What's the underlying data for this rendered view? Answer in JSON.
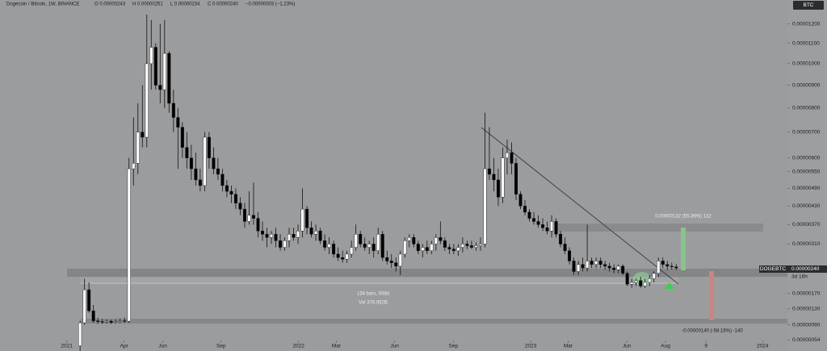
{
  "chart_data": {
    "type": "candlestick",
    "header": {
      "symbol": "Dogecoin / Bitcoin, 1W, BINANCE",
      "open": "O 0.00000243",
      "high": "H 0.00000251",
      "low": "L 0.00000234",
      "close": "C 0.00000240",
      "change": "−0.00000003 (−1.23%)"
    },
    "currency": "BTC",
    "ticker": "DOGEBTC",
    "last_price": "0.00000240",
    "countdown": "3d 16h",
    "annotations": {
      "gain": "0.00000132 (55.36%) 132",
      "range_bars": "134 bars, 938d",
      "range_vol": "Vol 376.062B",
      "loss": "-0.00000140 (-58.16%) -140"
    },
    "up_color": "#ffffff",
    "down_color": "#000000",
    "xlim": [
      -15,
      162
    ],
    "xticks": [
      {
        "value": 0,
        "label": "2021"
      },
      {
        "value": 12.9,
        "label": "Apr"
      },
      {
        "value": 21.6,
        "label": "Jun"
      },
      {
        "value": 34.7,
        "label": "Sep"
      },
      {
        "value": 52.1,
        "label": "2022"
      },
      {
        "value": 60.6,
        "label": "Mar"
      },
      {
        "value": 73.7,
        "label": "Jun"
      },
      {
        "value": 86.9,
        "label": "Sep"
      },
      {
        "value": 104.3,
        "label": "2023"
      },
      {
        "value": 112.7,
        "label": "Mar"
      },
      {
        "value": 125.9,
        "label": "Jun"
      },
      {
        "value": 134.6,
        "label": "Aug"
      },
      {
        "value": 143.7,
        "label": "9"
      },
      {
        "value": 156.4,
        "label": "2024"
      }
    ],
    "ylim": [
      2.8e-07,
      1.33e-05
    ],
    "yticks": [
      {
        "value": 1.2e-05,
        "label": "0.00001200"
      },
      {
        "value": 1.1e-05,
        "label": "0.00001100"
      },
      {
        "value": 1e-05,
        "label": "0.00001000"
      },
      {
        "value": 9e-06,
        "label": "0.00000900"
      },
      {
        "value": 8e-06,
        "label": "0.00000800"
      },
      {
        "value": 7e-06,
        "label": "0.00000700"
      },
      {
        "value": 6e-06,
        "label": "0.00000600"
      },
      {
        "value": 5.5e-06,
        "label": "0.00000550"
      },
      {
        "value": 4.9e-06,
        "label": "0.00000490"
      },
      {
        "value": 4.3e-06,
        "label": "0.00000430"
      },
      {
        "value": 3.7e-06,
        "label": "0.00000370"
      },
      {
        "value": 3.1e-06,
        "label": "0.00000310"
      },
      {
        "value": 1.7e-06,
        "label": "0.00000170"
      },
      {
        "value": 1.3e-06,
        "label": "0.00000130"
      },
      {
        "value": 9e-07,
        "label": "0.00000090"
      },
      {
        "value": 5.4e-07,
        "label": "0.00000054"
      }
    ],
    "x": [
      3,
      4,
      5,
      6,
      7,
      8,
      9,
      10,
      11,
      12,
      13,
      14,
      15,
      16,
      17,
      18,
      19,
      20,
      21,
      22,
      23,
      24,
      25,
      26,
      27,
      28,
      29,
      30,
      31,
      32,
      33,
      34,
      35,
      36,
      37,
      38,
      39,
      40,
      41,
      42,
      43,
      44,
      45,
      46,
      47,
      48,
      49,
      50,
      51,
      52,
      53,
      54,
      55,
      56,
      57,
      58,
      59,
      60,
      61,
      62,
      63,
      64,
      65,
      66,
      67,
      68,
      69,
      70,
      71,
      72,
      73,
      74,
      75,
      76,
      77,
      78,
      79,
      80,
      81,
      82,
      83,
      84,
      85,
      86,
      87,
      88,
      89,
      90,
      91,
      92,
      93,
      94,
      95,
      96,
      97,
      98,
      99,
      100,
      101,
      102,
      103,
      104,
      105,
      106,
      107,
      108,
      109,
      110,
      111,
      112,
      113,
      114,
      115,
      116,
      117,
      118,
      119,
      120,
      121,
      122,
      123,
      124,
      125,
      126,
      127,
      128,
      129,
      130,
      131,
      132,
      133,
      134,
      135,
      136,
      137
    ],
    "open": [
      4e-07,
      9.5e-07,
      1.8e-06,
      1.25e-06,
      1e-06,
      9.8e-07,
      9.7e-07,
      9.9e-07,
      9.6e-07,
      9.8e-07,
      1e-06,
      9.9e-07,
      5.6e-06,
      5.8e-06,
      7e-06,
      6.8e-06,
      1e-05,
      1.08e-05,
      9e-06,
      8.8e-06,
      1.05e-05,
      8.2e-06,
      7.6e-06,
      7.2e-06,
      6.4e-06,
      6e-06,
      5.6e-06,
      5.2e-06,
      5e-06,
      6.8e-06,
      6e-06,
      5.6e-06,
      5.4e-06,
      5e-06,
      4.8e-06,
      4.7e-06,
      4.4e-06,
      4.2e-06,
      3.8e-06,
      4e-06,
      3.9e-06,
      3.5e-06,
      3.4e-06,
      3.3e-06,
      3.4e-06,
      3.2e-06,
      3e-06,
      3.2e-06,
      3.4e-06,
      3.3e-06,
      3.5e-06,
      4.2e-06,
      3.6e-06,
      3.4e-06,
      3.5e-06,
      3.2e-06,
      3e-06,
      3.1e-06,
      2.8e-06,
      2.7e-06,
      2.65e-06,
      2.8e-06,
      3e-06,
      3.4e-06,
      3.1e-06,
      3e-06,
      3.1e-06,
      2.9e-06,
      3.4e-06,
      2.7e-06,
      2.6e-06,
      2.55e-06,
      2.45e-06,
      2.8e-06,
      3.2e-06,
      3.3e-06,
      3.1e-06,
      2.9e-06,
      3e-06,
      2.9e-06,
      3.1e-06,
      3.3e-06,
      3.2e-06,
      3e-06,
      2.95e-06,
      2.9e-06,
      3e-06,
      3.1e-06,
      3.05e-06,
      3e-06,
      3.05e-06,
      3.1e-06,
      5.6e-06,
      5.4e-06,
      5.2e-06,
      4.6e-06,
      6e-06,
      6.2e-06,
      5.8e-06,
      4.7e-06,
      4.3e-06,
      4.1e-06,
      3.9e-06,
      3.8e-06,
      3.7e-06,
      3.6e-06,
      3.5e-06,
      3.8e-06,
      3.4e-06,
      3.1e-06,
      2.9e-06,
      2.6e-06,
      2.3e-06,
      2.5e-06,
      2.4e-06,
      2.6e-06,
      2.5e-06,
      2.6e-06,
      2.5e-06,
      2.45e-06,
      2.4e-06,
      2.35e-06,
      2.45e-06,
      2.25e-06,
      1.95e-06,
      2e-06,
      2.05e-06,
      1.9e-06,
      2e-06,
      2.1e-06,
      2.25e-06,
      2.6e-06,
      2.5e-06,
      2.45e-06,
      2.43e-06
    ],
    "high": [
      1e-06,
      2.1e-06,
      2e-06,
      1.4e-06,
      1.08e-06,
      1.05e-06,
      1.04e-06,
      1.03e-06,
      1.04e-06,
      1.06e-06,
      1.08e-06,
      6e-06,
      7.6e-06,
      8.2e-06,
      9e-06,
      1.25e-05,
      1.22e-05,
      1.1e-05,
      1.2e-05,
      1.22e-05,
      1.06e-05,
      8.8e-06,
      8e-06,
      7.4e-06,
      7e-06,
      6.5e-06,
      6.2e-06,
      5.6e-06,
      7e-06,
      7e-06,
      6.4e-06,
      6e-06,
      5.6e-06,
      5.2e-06,
      5e-06,
      4.9e-06,
      4.6e-06,
      4.4e-06,
      4.8e-06,
      5.1e-06,
      4.1e-06,
      3.8e-06,
      3.6e-06,
      3.5e-06,
      3.6e-06,
      3.4e-06,
      3.3e-06,
      3.6e-06,
      3.6e-06,
      3.7e-06,
      4.9e-06,
      4.3e-06,
      3.8e-06,
      3.7e-06,
      3.6e-06,
      3.4e-06,
      3.3e-06,
      3.2e-06,
      3e-06,
      2.9e-06,
      2.9e-06,
      3.2e-06,
      3.7e-06,
      3.5e-06,
      3.3e-06,
      3.2e-06,
      3.3e-06,
      3.6e-06,
      3.5e-06,
      2.9e-06,
      2.8e-06,
      2.7e-06,
      2.9e-06,
      3.3e-06,
      3.4e-06,
      3.4e-06,
      3.2e-06,
      3.1e-06,
      3.2e-06,
      3.2e-06,
      3.4e-06,
      3.8e-06,
      3.3e-06,
      3.1e-06,
      3.1e-06,
      3.1e-06,
      3.3e-06,
      3.2e-06,
      3.2e-06,
      3.15e-06,
      3.3e-06,
      7.8e-06,
      7.2e-06,
      6e-06,
      5.6e-06,
      6.4e-06,
      6.7e-06,
      6.6e-06,
      6e-06,
      4.8e-06,
      4.5e-06,
      4.2e-06,
      4.1e-06,
      4e-06,
      3.9e-06,
      3.8e-06,
      4e-06,
      3.9e-06,
      3.5e-06,
      3.3e-06,
      3e-06,
      2.7e-06,
      2.6e-06,
      2.7e-06,
      3.7e-06,
      2.7e-06,
      2.7e-06,
      2.7e-06,
      2.6e-06,
      2.55e-06,
      2.5e-06,
      2.5e-06,
      2.5e-06,
      2.3e-06,
      2.1e-06,
      2.1e-06,
      2.15e-06,
      2.1e-06,
      2.2e-06,
      2.3e-06,
      2.7e-06,
      2.7e-06,
      2.6e-06,
      2.55e-06,
      2.51e-06
    ],
    "low": [
      2.8e-07,
      9e-07,
      1.2e-06,
      9.5e-07,
      9.2e-07,
      9.2e-07,
      9.3e-07,
      9.2e-07,
      9.3e-07,
      9.4e-07,
      9.5e-07,
      9.5e-07,
      5e-06,
      5.4e-06,
      6.4e-06,
      6.4e-06,
      8.8e-06,
      8.8e-06,
      8.2e-06,
      8e-06,
      7.8e-06,
      7e-06,
      5.6e-06,
      6e-06,
      5.6e-06,
      5.2e-06,
      5e-06,
      4.8e-06,
      4.8e-06,
      5.6e-06,
      5.4e-06,
      5.2e-06,
      4.8e-06,
      4.6e-06,
      4.4e-06,
      4.2e-06,
      4e-06,
      3.6e-06,
      3.7e-06,
      3.7e-06,
      3.3e-06,
      3.2e-06,
      3e-06,
      3.1e-06,
      3e-06,
      2.9e-06,
      2.9e-06,
      3e-06,
      3.2e-06,
      3.1e-06,
      3.3e-06,
      3.4e-06,
      3.3e-06,
      3.2e-06,
      3.1e-06,
      2.9e-06,
      2.8e-06,
      2.7e-06,
      2.6e-06,
      2.55e-06,
      2.55e-06,
      2.7e-06,
      2.9e-06,
      3e-06,
      2.9e-06,
      2.8e-06,
      2.7e-06,
      2.8e-06,
      2.6e-06,
      2.5e-06,
      2.4e-06,
      2.3e-06,
      2.2e-06,
      2.7e-06,
      3e-06,
      3e-06,
      2.8e-06,
      2.7e-06,
      2.8e-06,
      2.8e-06,
      2.9e-06,
      3.1e-06,
      2.9e-06,
      2.8e-06,
      2.8e-06,
      2.75e-06,
      2.85e-06,
      2.95e-06,
      2.95e-06,
      2.9e-06,
      2.9e-06,
      3e-06,
      5.2e-06,
      4.8e-06,
      4.3e-06,
      4.4e-06,
      5.4e-06,
      5.4e-06,
      4.5e-06,
      4.2e-06,
      4e-06,
      3.8e-06,
      3.7e-06,
      3.6e-06,
      3.5e-06,
      3.4e-06,
      3.3e-06,
      3.3e-06,
      3e-06,
      2.8e-06,
      2.5e-06,
      2.2e-06,
      2.2e-06,
      2.3e-06,
      2.3e-06,
      2.4e-06,
      2.4e-06,
      2.4e-06,
      2.35e-06,
      2.3e-06,
      2.25e-06,
      2.25e-06,
      2.2e-06,
      1.9e-06,
      1.85e-06,
      1.9e-06,
      1.85e-06,
      1.85e-06,
      1.9e-06,
      2e-06,
      2.15e-06,
      2.4e-06,
      2.35e-06,
      2.35e-06,
      2.34e-06
    ],
    "close": [
      9.5e-07,
      1.8e-06,
      1.25e-06,
      1e-06,
      9.8e-07,
      9.7e-07,
      9.9e-07,
      9.6e-07,
      9.8e-07,
      1e-06,
      9.9e-07,
      5.6e-06,
      5.8e-06,
      7e-06,
      6.8e-06,
      1e-05,
      1.08e-05,
      9e-06,
      8.8e-06,
      1.05e-05,
      8.2e-06,
      7.6e-06,
      7.2e-06,
      6.4e-06,
      6e-06,
      5.6e-06,
      5.2e-06,
      5e-06,
      6.8e-06,
      6e-06,
      5.6e-06,
      5.4e-06,
      5e-06,
      4.8e-06,
      4.7e-06,
      4.4e-06,
      4.2e-06,
      3.8e-06,
      4e-06,
      3.9e-06,
      3.5e-06,
      3.4e-06,
      3.3e-06,
      3.4e-06,
      3.2e-06,
      3e-06,
      3.2e-06,
      3.4e-06,
      3.3e-06,
      3.5e-06,
      4.2e-06,
      3.6e-06,
      3.4e-06,
      3.5e-06,
      3.2e-06,
      3e-06,
      3.1e-06,
      2.8e-06,
      2.7e-06,
      2.65e-06,
      2.8e-06,
      3e-06,
      3.4e-06,
      3.1e-06,
      3e-06,
      3.1e-06,
      2.9e-06,
      3.4e-06,
      2.7e-06,
      2.6e-06,
      2.55e-06,
      2.45e-06,
      2.8e-06,
      3.2e-06,
      3.3e-06,
      3.1e-06,
      2.9e-06,
      3e-06,
      2.9e-06,
      3.1e-06,
      3.3e-06,
      3.2e-06,
      3e-06,
      2.95e-06,
      2.9e-06,
      3e-06,
      3.1e-06,
      3.05e-06,
      3e-06,
      3.05e-06,
      3.1e-06,
      5.6e-06,
      5.4e-06,
      5.2e-06,
      4.6e-06,
      6e-06,
      6.2e-06,
      5.8e-06,
      4.7e-06,
      4.3e-06,
      4.1e-06,
      3.9e-06,
      3.8e-06,
      3.7e-06,
      3.6e-06,
      3.5e-06,
      3.8e-06,
      3.4e-06,
      3.1e-06,
      2.9e-06,
      2.6e-06,
      2.3e-06,
      2.5e-06,
      2.4e-06,
      2.6e-06,
      2.5e-06,
      2.6e-06,
      2.5e-06,
      2.45e-06,
      2.4e-06,
      2.35e-06,
      2.45e-06,
      2.25e-06,
      1.95e-06,
      2e-06,
      2.05e-06,
      1.9e-06,
      2e-06,
      2.1e-06,
      2.25e-06,
      2.6e-06,
      2.5e-06,
      2.45e-06,
      2.43e-06,
      2.4e-06
    ]
  }
}
